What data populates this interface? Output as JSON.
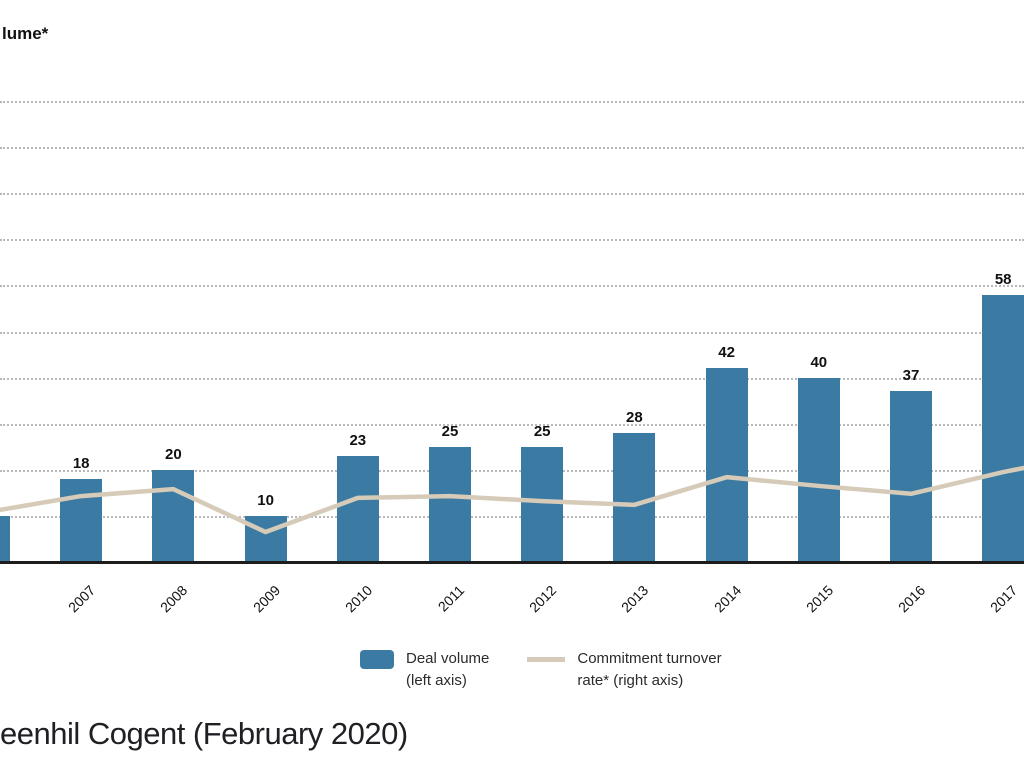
{
  "header": {
    "title_visible_fragment": "lume*"
  },
  "source_text": "eenhil Cogent (February 2020)",
  "chart_data": {
    "type": "bar",
    "subtype": "bar-line-combo",
    "title": "lume*",
    "title_note": "chart title cut off at left edge of image; only 'lume*' visible (likely 'Deal volume*')",
    "categories": [
      "",
      "2007",
      "2008",
      "2009",
      "2010",
      "2011",
      "2012",
      "2013",
      "2014",
      "2015",
      "2016",
      "2017"
    ],
    "series": [
      {
        "name": "Deal volume (left axis)",
        "type": "bar",
        "color": "#3b7aa2",
        "values": [
          10,
          18,
          20,
          10,
          23,
          25,
          25,
          28,
          42,
          40,
          37,
          58
        ],
        "value_labels": [
          "",
          "18",
          "20",
          "10",
          "23",
          "25",
          "25",
          "28",
          "42",
          "40",
          "37",
          "58"
        ],
        "note": "first bar is clipped at the left image edge (no year or value label visible); value estimated from gridlines; last bar (2017, 58) touches right image edge"
      },
      {
        "name": "Commitment turnover rate* (right axis)",
        "type": "line",
        "color": "#d6cab8",
        "note": "right axis tick labels not visible (cut off); values below are estimates expressed in left-axis units read from gridlines",
        "values": [
          null,
          14.3,
          15.8,
          6.5,
          13.9,
          14.3,
          13.2,
          12.4,
          18.4,
          16.5,
          14.8,
          19.5
        ],
        "edge_values": {
          "left_edge_x0": 11.3,
          "right_edge_x1024": 20.4
        }
      }
    ],
    "ylabel": "",
    "xlabel": "",
    "ylim_left": [
      0,
      100
    ],
    "gridlines": {
      "on": true,
      "step": 10,
      "count": 10,
      "style": "dotted",
      "color": "#b8b8b8"
    },
    "axis_tick_labels_visible": false,
    "legend": {
      "position": "bottom-center",
      "items": [
        {
          "swatch": "bar-swatch",
          "color": "#3b7aa2",
          "line1": "Deal volume",
          "line2": "(left axis)"
        },
        {
          "swatch": "line-swatch",
          "color": "#d6cab8",
          "line1": "Commitment turnover",
          "line2": "rate* (right axis)"
        }
      ]
    }
  }
}
